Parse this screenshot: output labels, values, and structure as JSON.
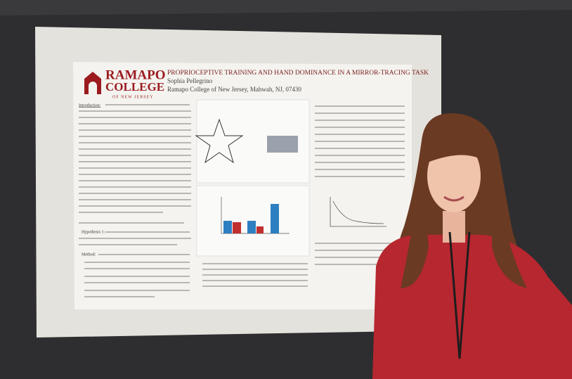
{
  "poster": {
    "logo": {
      "name": "RAMAPO",
      "college": "COLLEGE",
      "tagline": "OF NEW JERSEY"
    },
    "title": "PROPRIOCEPTIVE TRAINING AND HAND DOMINANCE IN A MIRROR-TRACING TASK",
    "author": "Sophia Pellegrino",
    "affiliation": "Ramapo College of New Jersey, Mahwah, NJ, 07430",
    "sections": [
      "Introduction:",
      "Hypothesis 1:",
      "Method:"
    ]
  }
}
